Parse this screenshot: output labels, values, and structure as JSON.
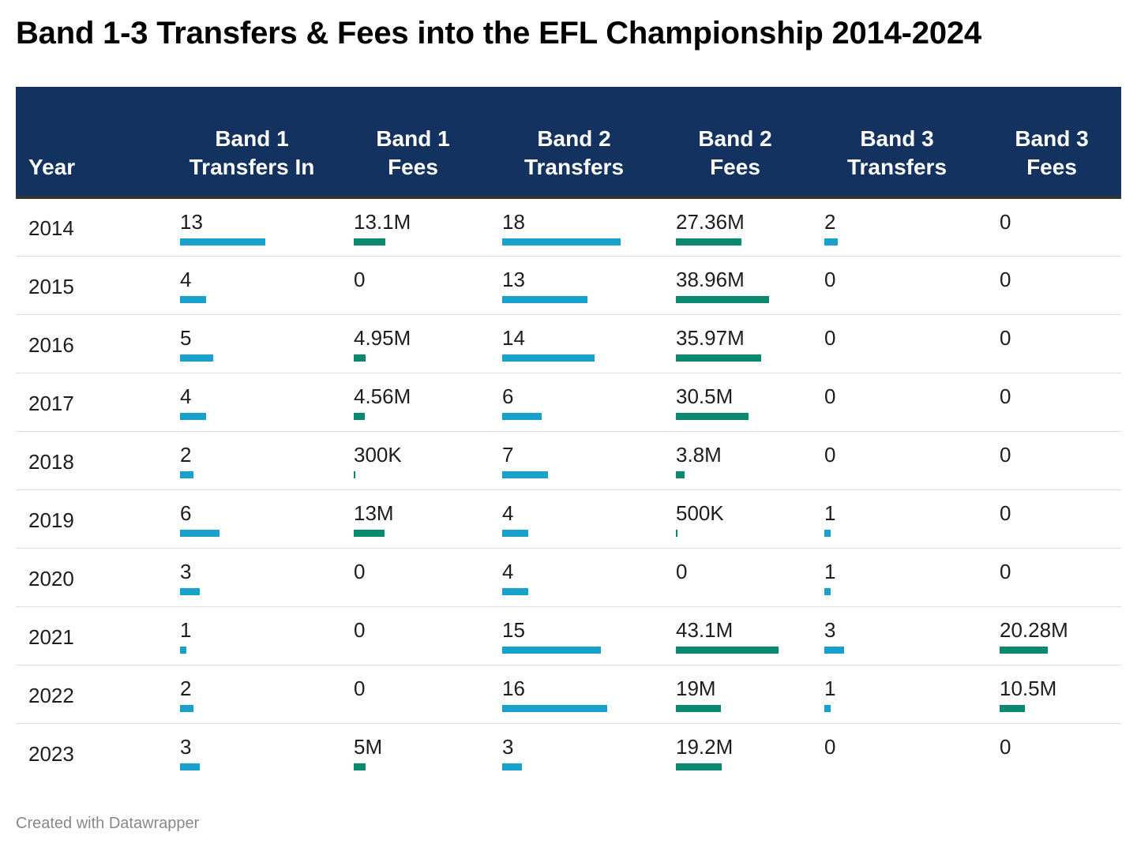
{
  "title": "Band 1-3 Transfers & Fees into the EFL Championship 2014-2024",
  "footer": "Created with Datawrapper",
  "colors": {
    "header_bg": "#14325f",
    "transfers_bar": "#18a1cd",
    "fees_bar": "#09896f"
  },
  "chart_data": {
    "type": "table",
    "columns": [
      {
        "key": "year",
        "label": "Year",
        "kind": "label"
      },
      {
        "key": "b1_transfers",
        "label": "Band 1 Transfers In",
        "kind": "transfers",
        "max": 18
      },
      {
        "key": "b1_fees",
        "label": "Band 1 Fees",
        "kind": "fees",
        "max": 43.1
      },
      {
        "key": "b2_transfers",
        "label": "Band 2 Transfers",
        "kind": "transfers",
        "max": 18
      },
      {
        "key": "b2_fees",
        "label": "Band 2 Fees",
        "kind": "fees",
        "max": 43.1
      },
      {
        "key": "b3_transfers",
        "label": "Band 3 Transfers",
        "kind": "transfers",
        "max": 18
      },
      {
        "key": "b3_fees",
        "label": "Band 3 Fees",
        "kind": "fees",
        "max": 43.1
      }
    ],
    "rows": [
      {
        "year": "2014",
        "b1_transfers": {
          "label": "13",
          "value": 13
        },
        "b1_fees": {
          "label": "13.1M",
          "value": 13.1
        },
        "b2_transfers": {
          "label": "18",
          "value": 18
        },
        "b2_fees": {
          "label": "27.36M",
          "value": 27.36
        },
        "b3_transfers": {
          "label": "2",
          "value": 2
        },
        "b3_fees": {
          "label": "0",
          "value": 0
        }
      },
      {
        "year": "2015",
        "b1_transfers": {
          "label": "4",
          "value": 4
        },
        "b1_fees": {
          "label": "0",
          "value": 0
        },
        "b2_transfers": {
          "label": "13",
          "value": 13
        },
        "b2_fees": {
          "label": "38.96M",
          "value": 38.96
        },
        "b3_transfers": {
          "label": "0",
          "value": 0
        },
        "b3_fees": {
          "label": "0",
          "value": 0
        }
      },
      {
        "year": "2016",
        "b1_transfers": {
          "label": "5",
          "value": 5
        },
        "b1_fees": {
          "label": "4.95M",
          "value": 4.95
        },
        "b2_transfers": {
          "label": "14",
          "value": 14
        },
        "b2_fees": {
          "label": "35.97M",
          "value": 35.97
        },
        "b3_transfers": {
          "label": "0",
          "value": 0
        },
        "b3_fees": {
          "label": "0",
          "value": 0
        }
      },
      {
        "year": "2017",
        "b1_transfers": {
          "label": "4",
          "value": 4
        },
        "b1_fees": {
          "label": "4.56M",
          "value": 4.56
        },
        "b2_transfers": {
          "label": "6",
          "value": 6
        },
        "b2_fees": {
          "label": "30.5M",
          "value": 30.5
        },
        "b3_transfers": {
          "label": "0",
          "value": 0
        },
        "b3_fees": {
          "label": "0",
          "value": 0
        }
      },
      {
        "year": "2018",
        "b1_transfers": {
          "label": "2",
          "value": 2
        },
        "b1_fees": {
          "label": "300K",
          "value": 0.3
        },
        "b2_transfers": {
          "label": "7",
          "value": 7
        },
        "b2_fees": {
          "label": "3.8M",
          "value": 3.8
        },
        "b3_transfers": {
          "label": "0",
          "value": 0
        },
        "b3_fees": {
          "label": "0",
          "value": 0
        }
      },
      {
        "year": "2019",
        "b1_transfers": {
          "label": "6",
          "value": 6
        },
        "b1_fees": {
          "label": "13M",
          "value": 13
        },
        "b2_transfers": {
          "label": "4",
          "value": 4
        },
        "b2_fees": {
          "label": "500K",
          "value": 0.5
        },
        "b3_transfers": {
          "label": "1",
          "value": 1
        },
        "b3_fees": {
          "label": "0",
          "value": 0
        }
      },
      {
        "year": "2020",
        "b1_transfers": {
          "label": "3",
          "value": 3
        },
        "b1_fees": {
          "label": "0",
          "value": 0
        },
        "b2_transfers": {
          "label": "4",
          "value": 4
        },
        "b2_fees": {
          "label": "0",
          "value": 0
        },
        "b3_transfers": {
          "label": "1",
          "value": 1
        },
        "b3_fees": {
          "label": "0",
          "value": 0
        }
      },
      {
        "year": "2021",
        "b1_transfers": {
          "label": "1",
          "value": 1
        },
        "b1_fees": {
          "label": "0",
          "value": 0
        },
        "b2_transfers": {
          "label": "15",
          "value": 15
        },
        "b2_fees": {
          "label": "43.1M",
          "value": 43.1
        },
        "b3_transfers": {
          "label": "3",
          "value": 3
        },
        "b3_fees": {
          "label": "20.28M",
          "value": 20.28
        }
      },
      {
        "year": "2022",
        "b1_transfers": {
          "label": "2",
          "value": 2
        },
        "b1_fees": {
          "label": "0",
          "value": 0
        },
        "b2_transfers": {
          "label": "16",
          "value": 16
        },
        "b2_fees": {
          "label": "19M",
          "value": 19
        },
        "b3_transfers": {
          "label": "1",
          "value": 1
        },
        "b3_fees": {
          "label": "10.5M",
          "value": 10.5
        }
      },
      {
        "year": "2023",
        "b1_transfers": {
          "label": "3",
          "value": 3
        },
        "b1_fees": {
          "label": "5M",
          "value": 5
        },
        "b2_transfers": {
          "label": "3",
          "value": 3
        },
        "b2_fees": {
          "label": "19.2M",
          "value": 19.2
        },
        "b3_transfers": {
          "label": "0",
          "value": 0
        },
        "b3_fees": {
          "label": "0",
          "value": 0
        }
      }
    ]
  }
}
